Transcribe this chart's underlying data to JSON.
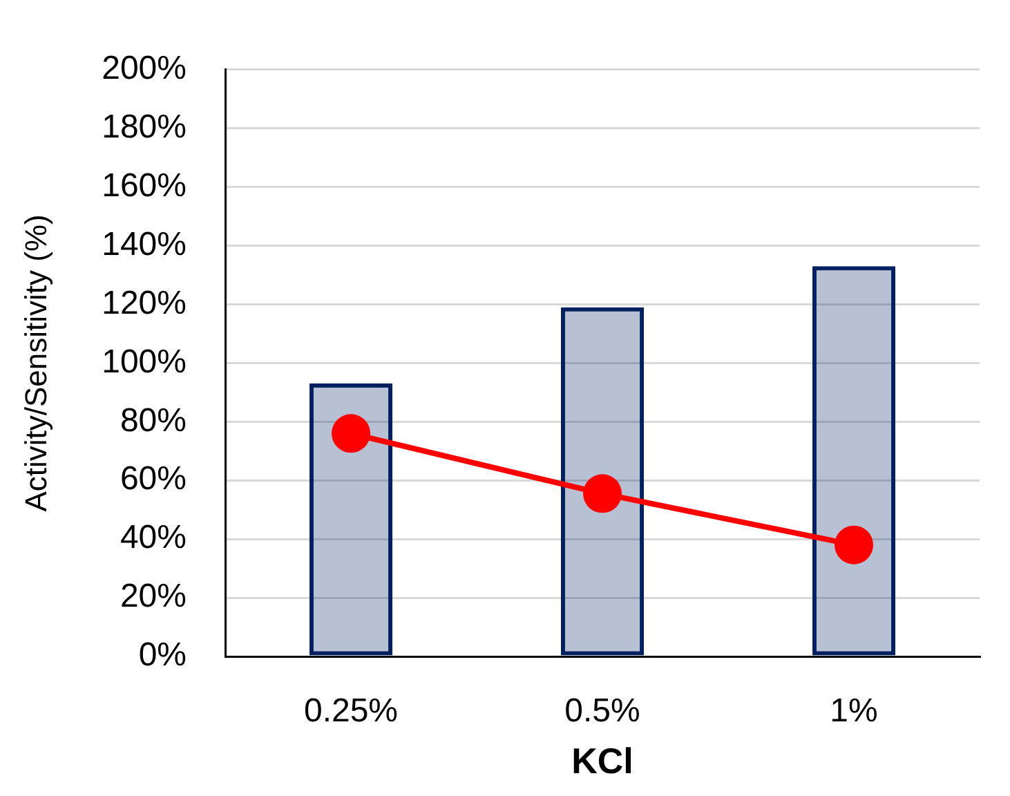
{
  "chart_data": {
    "type": "bar",
    "xlabel": "KCl",
    "ylabel": "Activity/Sensitivity (%)",
    "categories": [
      "0.25%",
      "0.5%",
      "1%"
    ],
    "series": [
      {
        "color": "#002060",
        "values": [
          93,
          119,
          133
        ]
      },
      {
        "type": "line",
        "color": "#ff0000",
        "values": [
          76,
          55.5,
          38
        ]
      }
    ],
    "ylim": [
      0,
      200
    ],
    "yticks": [
      {
        "value": 0,
        "label": "0%"
      },
      {
        "value": 20,
        "label": "20%"
      },
      {
        "value": 40,
        "label": "40%"
      },
      {
        "value": 60,
        "label": "60%"
      },
      {
        "value": 80,
        "label": "80%"
      },
      {
        "value": 100,
        "label": "100%"
      },
      {
        "value": 120,
        "label": "120%"
      },
      {
        "value": 140,
        "label": "140%"
      },
      {
        "value": 160,
        "label": "160%"
      },
      {
        "value": 180,
        "label": "180%"
      },
      {
        "value": 200,
        "label": "200%"
      }
    ],
    "grid": "y",
    "legend": false,
    "marker": "circle",
    "line_style": "solid"
  }
}
